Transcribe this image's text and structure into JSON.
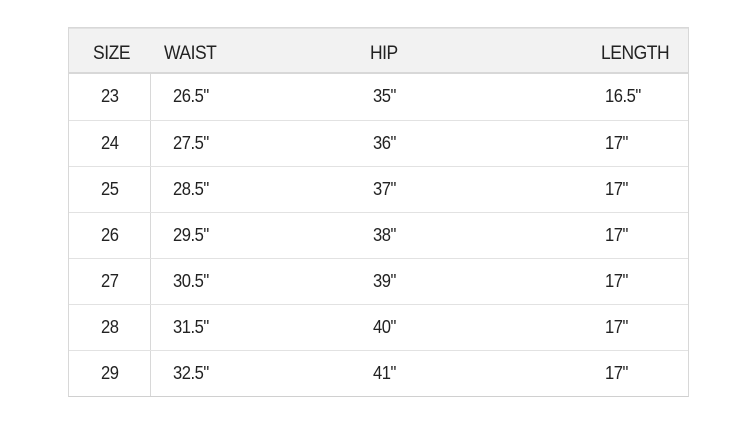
{
  "headers": [
    "SIZE",
    "WAIST",
    "HIP",
    "LENGTH"
  ],
  "rows": [
    [
      "23",
      "26.5\"",
      "35\"",
      "16.5\""
    ],
    [
      "24",
      "27.5\"",
      "36\"",
      "17\""
    ],
    [
      "25",
      "28.5\"",
      "37\"",
      "17\""
    ],
    [
      "26",
      "29.5\"",
      "38\"",
      "17\""
    ],
    [
      "27",
      "30.5\"",
      "39\"",
      "17\""
    ],
    [
      "28",
      "31.5\"",
      "40\"",
      "17\""
    ],
    [
      "29",
      "32.5\"",
      "41\"",
      "17\""
    ]
  ]
}
